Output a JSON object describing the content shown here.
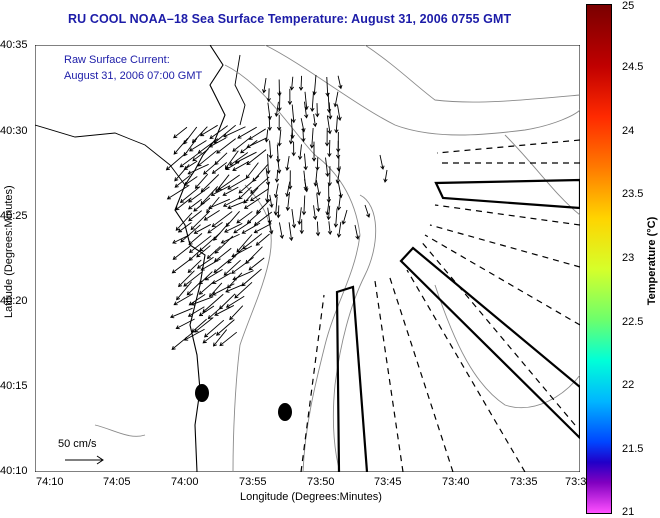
{
  "title": "RU COOL  NOAA–18  Sea Surface Temperature:  August 31, 2006 0755 GMT",
  "current_note": {
    "line1": "Raw Surface Current:",
    "line2": "August 31, 2006 07:00 GMT"
  },
  "scale_label": "50 cm/s",
  "xlabel": "Longitude (Degrees:Minutes)",
  "ylabel": "Latitude (Degrees:Minutes)",
  "x_ticks": [
    "74:10",
    "74:05",
    "74:00",
    "73:55",
    "73:50",
    "73:45",
    "73:40",
    "73:35",
    "73:3"
  ],
  "y_ticks": [
    "40:35",
    "40:30",
    "40:25",
    "40:20",
    "40:15",
    "40:10"
  ],
  "colorbar": {
    "label": "Temperature (°C)",
    "ticks": [
      "25",
      "24.5",
      "24",
      "23.5",
      "23",
      "22.5",
      "22",
      "21.5",
      "21"
    ],
    "colors": [
      "#7a0000",
      "#ff2a00",
      "#ffd400",
      "#6cff6c",
      "#00b6ff",
      "#2000c8",
      "#ff50ff"
    ]
  }
}
